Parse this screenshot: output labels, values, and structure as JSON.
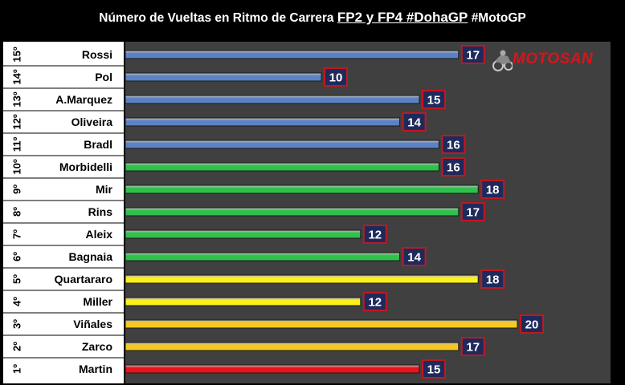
{
  "title": {
    "prefix": "Número de Vueltas en Ritmo de Carrera",
    "highlight": "FP2 y FP4 #DohaGP",
    "suffix": "#MotoGP"
  },
  "logo": {
    "text": "MOTOSAN"
  },
  "colors": {
    "background": "#000000",
    "plot_area": "#404040",
    "label_panel": "#ffffff",
    "value_box": "#1f2a5c",
    "blue": "#5b82c4",
    "green": "#2ec24a",
    "yellow": "#fdf11c",
    "orange_yellow": "#f8c81a",
    "red": "#e8141c"
  },
  "chart_data": {
    "type": "bar",
    "orientation": "horizontal",
    "title": "Número de Vueltas en Ritmo de Carrera FP2 y FP4 #DohaGP #MotoGP",
    "xlim": [
      0,
      22
    ],
    "grid": false,
    "legend": "none",
    "categories": [
      "Rossi",
      "Pol",
      "A.Marquez",
      "Oliveira",
      "Bradl",
      "Morbidelli",
      "Mir",
      "Rins",
      "Aleix",
      "Bagnaia",
      "Quartararo",
      "Miller",
      "Viñales",
      "Zarco",
      "Martin"
    ],
    "positions": [
      "15º",
      "14º",
      "13º",
      "12º",
      "11º",
      "10º",
      "9º",
      "8º",
      "7º",
      "6º",
      "5º",
      "4º",
      "3º",
      "2º",
      "1º"
    ],
    "values": [
      17,
      10,
      15,
      14,
      16,
      16,
      18,
      17,
      12,
      14,
      18,
      12,
      20,
      17,
      15
    ],
    "bar_colors": [
      "#5b82c4",
      "#5b82c4",
      "#5b82c4",
      "#5b82c4",
      "#5b82c4",
      "#2ec24a",
      "#2ec24a",
      "#2ec24a",
      "#2ec24a",
      "#2ec24a",
      "#fdf11c",
      "#fdf11c",
      "#f8c81a",
      "#f8c81a",
      "#e8141c"
    ]
  }
}
